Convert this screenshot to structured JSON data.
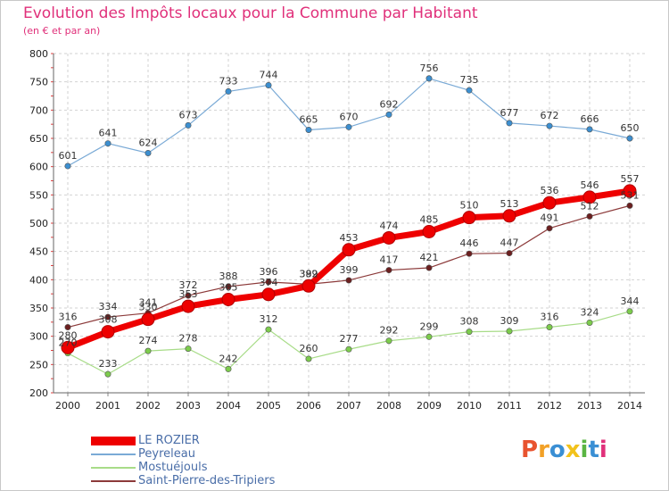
{
  "header": {
    "title": "Evolution des Impôts locaux pour la Commune par Habitant",
    "subtitle": "(en € et par an)"
  },
  "brand": {
    "letters": [
      "P",
      "r",
      "o",
      "x",
      "i",
      "t",
      "i"
    ],
    "colors": [
      "#e8532f",
      "#f2a127",
      "#3a8fd4",
      "#f2c21b",
      "#5ab543",
      "#3a8fd4",
      "#e0307a"
    ]
  },
  "chart_data": {
    "type": "line",
    "title": "Evolution des Impôts locaux pour la Commune par Habitant",
    "subtitle": "(en € et par an)",
    "xlabel": "",
    "ylabel": "",
    "x": [
      "2000",
      "2001",
      "2002",
      "2003",
      "2004",
      "2005",
      "2006",
      "2007",
      "2008",
      "2009",
      "2010",
      "2011",
      "2012",
      "2013",
      "2014"
    ],
    "ylim": [
      200,
      800
    ],
    "yticks": [
      "200",
      "250",
      "300",
      "350",
      "400",
      "450",
      "500",
      "550",
      "600",
      "650",
      "700",
      "750",
      "800"
    ],
    "grid": true,
    "legend_position": "bottom-left",
    "series": [
      {
        "name": "LE ROZIER",
        "color": "#ee0000",
        "values": [
          280,
          308,
          330,
          353,
          365,
          374,
          389,
          453,
          474,
          485,
          510,
          513,
          536,
          546,
          557
        ],
        "labels": [
          "280",
          "308",
          "330",
          "353",
          "365",
          "374",
          "389",
          "453",
          "474",
          "485",
          "510",
          "513",
          "536",
          "546",
          "557"
        ]
      },
      {
        "name": "Peyreleau",
        "color": "#7aaad6",
        "marker": "#3c8fd0",
        "values": [
          601,
          641,
          624,
          673,
          733,
          744,
          665,
          670,
          692,
          756,
          735,
          677,
          672,
          666,
          650
        ],
        "labels": [
          "601",
          "641",
          "624",
          "673",
          "733",
          "744",
          "665",
          "670",
          "692",
          "756",
          "735",
          "677",
          "672",
          "666",
          "650"
        ]
      },
      {
        "name": "Mostuéjouls",
        "color": "#a8dc88",
        "marker": "#7ccc4c",
        "values": [
          270,
          233,
          274,
          278,
          242,
          312,
          260,
          277,
          292,
          299,
          308,
          309,
          316,
          324,
          344
        ],
        "labels": [
          "270",
          "233",
          "274",
          "278",
          "242",
          "312",
          "260",
          "277",
          "292",
          "299",
          "308",
          "309",
          "316",
          "324",
          "344"
        ]
      },
      {
        "name": "Saint-Pierre-des-Tripiers",
        "color": "#8c3a3a",
        "marker": "#6b1f1f",
        "values": [
          316,
          334,
          341,
          372,
          388,
          396,
          392,
          399,
          417,
          421,
          446,
          447,
          491,
          512,
          531
        ],
        "labels": [
          "316",
          "334",
          "341",
          "372",
          "388",
          "396",
          "392",
          "399",
          "417",
          "421",
          "446",
          "447",
          "491",
          "512",
          "531"
        ]
      }
    ]
  }
}
